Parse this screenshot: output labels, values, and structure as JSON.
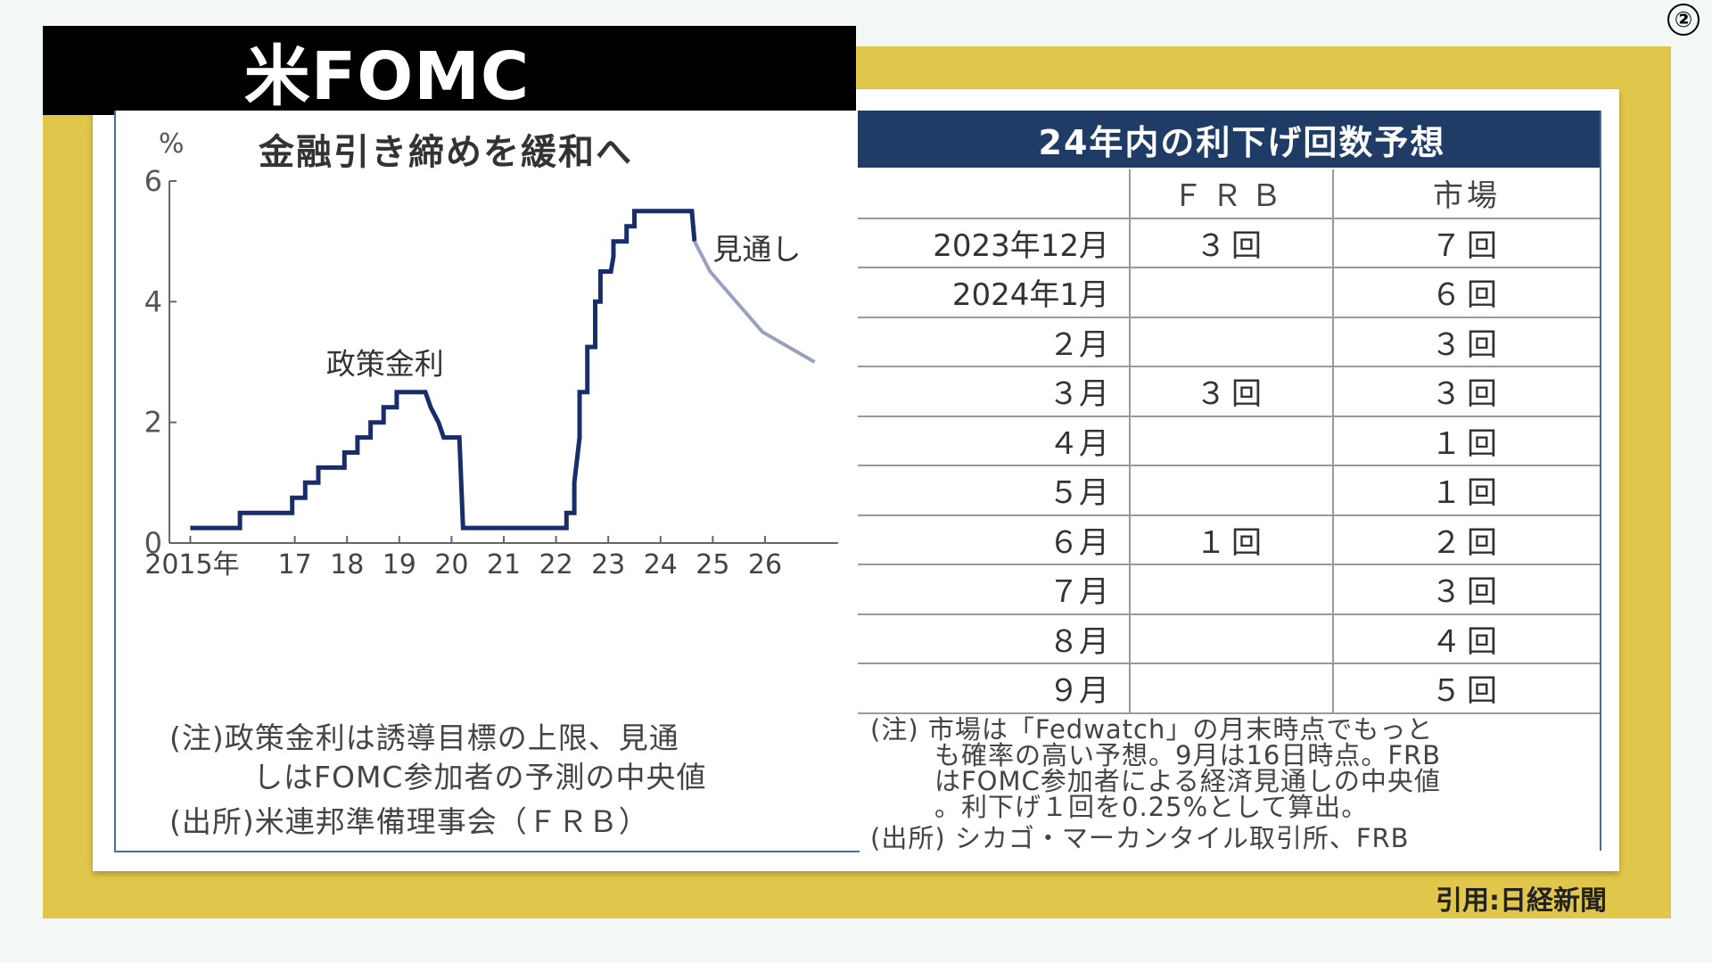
{
  "page_number": "②",
  "title": "米FOMC",
  "chart": {
    "title": "金融引き締めを緩和へ",
    "y_unit": "%",
    "annotation_policy": "政策金利",
    "annotation_outlook": "見通し",
    "note_line1": "(注)政策金利は誘導目標の上限、見通",
    "note_line2": "しはFOMC参加者の予測の中央値",
    "source": "(出所)米連邦準備理事会（ＦＲＢ）"
  },
  "chart_data": {
    "type": "line",
    "title": "金融引き締めを緩和へ",
    "ylabel": "%",
    "xlabel": "",
    "ylim": [
      0,
      6
    ],
    "xlim": [
      2014.6,
      2027.4
    ],
    "y_ticks": [
      0,
      2,
      4,
      6
    ],
    "x_ticks": [
      {
        "value": 2015,
        "label": "2015年"
      },
      {
        "value": 2017,
        "label": "17"
      },
      {
        "value": 2018,
        "label": "18"
      },
      {
        "value": 2019,
        "label": "19"
      },
      {
        "value": 2020,
        "label": "20"
      },
      {
        "value": 2021,
        "label": "21"
      },
      {
        "value": 2022,
        "label": "22"
      },
      {
        "value": 2023,
        "label": "23"
      },
      {
        "value": 2024,
        "label": "24"
      },
      {
        "value": 2025,
        "label": "25"
      },
      {
        "value": 2026,
        "label": "26"
      }
    ],
    "grid": false,
    "series": [
      {
        "name": "政策金利",
        "color": "#1a2d6b",
        "points": [
          [
            2015.0,
            0.25
          ],
          [
            2015.95,
            0.25
          ],
          [
            2015.95,
            0.5
          ],
          [
            2016.95,
            0.5
          ],
          [
            2016.95,
            0.75
          ],
          [
            2017.2,
            0.75
          ],
          [
            2017.2,
            1.0
          ],
          [
            2017.45,
            1.0
          ],
          [
            2017.45,
            1.25
          ],
          [
            2017.95,
            1.25
          ],
          [
            2017.95,
            1.5
          ],
          [
            2018.2,
            1.5
          ],
          [
            2018.2,
            1.75
          ],
          [
            2018.45,
            1.75
          ],
          [
            2018.45,
            2.0
          ],
          [
            2018.7,
            2.0
          ],
          [
            2018.7,
            2.25
          ],
          [
            2018.95,
            2.25
          ],
          [
            2018.95,
            2.5
          ],
          [
            2019.5,
            2.5
          ],
          [
            2019.6,
            2.25
          ],
          [
            2019.75,
            2.0
          ],
          [
            2019.85,
            1.75
          ],
          [
            2020.15,
            1.75
          ],
          [
            2020.22,
            0.25
          ],
          [
            2022.2,
            0.25
          ],
          [
            2022.2,
            0.5
          ],
          [
            2022.35,
            0.5
          ],
          [
            2022.35,
            1.0
          ],
          [
            2022.45,
            1.75
          ],
          [
            2022.45,
            2.5
          ],
          [
            2022.6,
            2.5
          ],
          [
            2022.6,
            3.25
          ],
          [
            2022.75,
            3.25
          ],
          [
            2022.75,
            4.0
          ],
          [
            2022.85,
            4.0
          ],
          [
            2022.85,
            4.5
          ],
          [
            2023.05,
            4.5
          ],
          [
            2023.1,
            4.75
          ],
          [
            2023.1,
            5.0
          ],
          [
            2023.35,
            5.0
          ],
          [
            2023.35,
            5.25
          ],
          [
            2023.5,
            5.25
          ],
          [
            2023.5,
            5.5
          ],
          [
            2024.6,
            5.5
          ],
          [
            2024.65,
            5.0
          ]
        ]
      },
      {
        "name": "見通し",
        "color": "#9aa0c0",
        "points": [
          [
            2024.65,
            5.0
          ],
          [
            2024.95,
            4.5
          ],
          [
            2025.95,
            3.5
          ],
          [
            2026.95,
            3.0
          ]
        ]
      }
    ],
    "annotations": [
      "政策金利",
      "見通し"
    ]
  },
  "table": {
    "header": "24年内の利下げ回数予想",
    "columns": [
      "",
      "ＦＲＢ",
      "市場"
    ],
    "rows": [
      [
        "2023年12月",
        "３回",
        "７回"
      ],
      [
        "2024年1月",
        "",
        "６回"
      ],
      [
        "２月",
        "",
        "３回"
      ],
      [
        "３月",
        "３回",
        "３回"
      ],
      [
        "４月",
        "",
        "１回"
      ],
      [
        "５月",
        "",
        "１回"
      ],
      [
        "６月",
        "１回",
        "２回"
      ],
      [
        "７月",
        "",
        "３回"
      ],
      [
        "８月",
        "",
        "４回"
      ],
      [
        "９月",
        "",
        "５回"
      ]
    ],
    "note_line1": "(注) 市場は「Fedwatch」の月末時点でもっと",
    "note_line2": "も確率の高い予想。9月は16日時点。FRB",
    "note_line3": "はFOMC参加者による経済見通しの中央値",
    "note_line4": "。利下げ１回を0.25%として算出。",
    "source": "(出所) シカゴ・マーカンタイル取引所、FRB"
  },
  "citation": "引用:日経新聞",
  "colors": {
    "frame": "#e0c64a",
    "title_bg": "#000000",
    "table_header_bg": "#1f3c66",
    "policy_line": "#1a2d6b",
    "outlook_line": "#9aa0c0"
  }
}
